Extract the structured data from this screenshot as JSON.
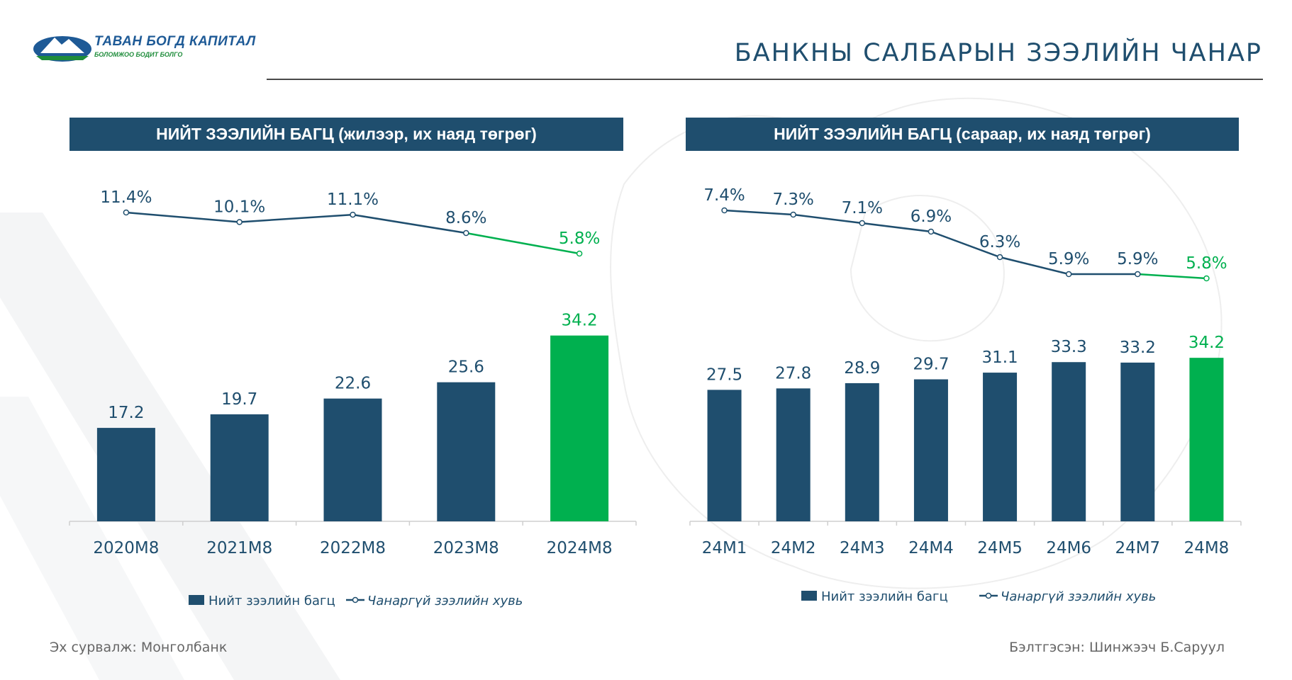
{
  "logo": {
    "name": "ТАВАН БОГД КАПИТАЛ",
    "tagline": "БОЛОМЖОО БОДИТ БОЛГО"
  },
  "page": {
    "title": "БАНКНЫ САЛБАРЫН ЗЭЭЛИЙН ЧАНАР",
    "source": "Эх сурвалж: Монголбанк",
    "author": "Бэлтгэсэн: Шинжээч Б.Саруул"
  },
  "colors": {
    "navy": "#1f4e6e",
    "green": "#00b04f",
    "highlight_text": "#00b04f"
  },
  "chart_data": [
    {
      "type": "bar",
      "title": "НИЙТ ЗЭЭЛИЙН БАГЦ (жилээр, их наяд төгрөг)",
      "categories": [
        "2020M8",
        "2021M8",
        "2022M8",
        "2023M8",
        "2024M8"
      ],
      "series": [
        {
          "name": "Нийт зээлийн багц",
          "type": "bar",
          "values": [
            17.2,
            19.7,
            22.6,
            25.6,
            34.2
          ],
          "labels": [
            "17.2",
            "19.7",
            "22.6",
            "25.6",
            "34.2"
          ]
        },
        {
          "name": "Чанаргүй зээлийн хувь",
          "type": "line",
          "values": [
            11.4,
            10.1,
            11.1,
            8.6,
            5.8
          ],
          "labels": [
            "11.4%",
            "10.1%",
            "11.1%",
            "8.6%",
            "5.8%"
          ]
        }
      ],
      "highlight_index": 4,
      "legend_position": "bottom"
    },
    {
      "type": "bar",
      "title": "НИЙТ ЗЭЭЛИЙН БАГЦ (сараар, их наяд төгрөг)",
      "categories": [
        "24M1",
        "24M2",
        "24M3",
        "24M4",
        "24M5",
        "24M6",
        "24M7",
        "24M8"
      ],
      "series": [
        {
          "name": "Нийт зээлийн багц",
          "type": "bar",
          "values": [
            27.5,
            27.8,
            28.9,
            29.7,
            31.1,
            33.3,
            33.2,
            34.2
          ],
          "labels": [
            "27.5",
            "27.8",
            "28.9",
            "29.7",
            "31.1",
            "33.3",
            "33.2",
            "34.2"
          ]
        },
        {
          "name": "Чанаргүй зээлийн хувь",
          "type": "line",
          "values": [
            7.4,
            7.3,
            7.1,
            6.9,
            6.3,
            5.9,
            5.9,
            5.8
          ],
          "labels": [
            "7.4%",
            "7.3%",
            "7.1%",
            "6.9%",
            "6.3%",
            "5.9%",
            "5.9%",
            "5.8%"
          ]
        }
      ],
      "highlight_index": 7,
      "legend_position": "bottom"
    }
  ]
}
